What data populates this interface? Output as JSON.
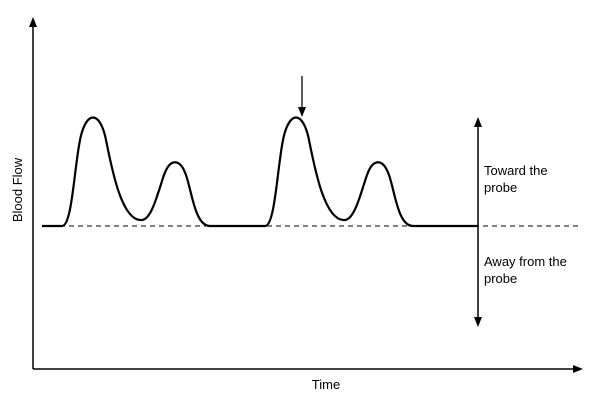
{
  "diagram": {
    "x_axis_label": "Time",
    "y_axis_label": "Blood Flow",
    "toward_label_line1": "Toward the",
    "toward_label_line2": "probe",
    "away_label_line1": "Away from the",
    "away_label_line2": "probe"
  },
  "colors": {
    "line": "#000000",
    "background": "#ffffff"
  }
}
